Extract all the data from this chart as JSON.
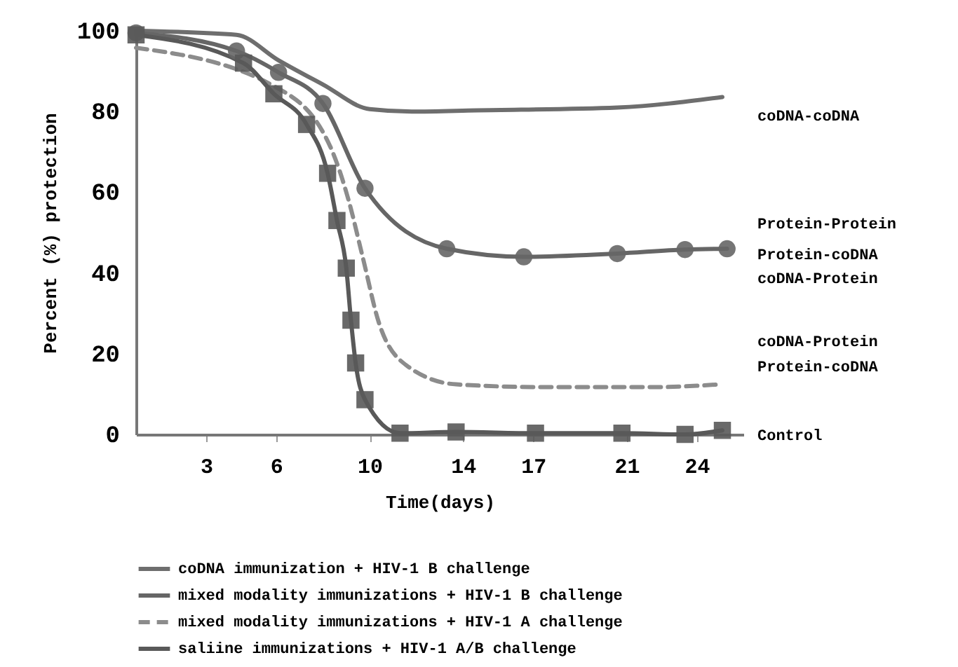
{
  "chart_data": {
    "type": "line",
    "xlabel": "Time(days)",
    "ylabel": "Percent (%) protection",
    "xlim": [
      0,
      26
    ],
    "xticks": [
      3,
      6,
      10,
      14,
      17,
      21,
      24
    ],
    "ylim": [
      0,
      100
    ],
    "yticks": [
      0,
      20,
      40,
      60,
      80,
      100
    ],
    "grid": false,
    "legend": "bottom",
    "series": [
      {
        "name": "coDNA immunization + HIV-1 B challenge",
        "color": "#6e6e6e",
        "marker": "none",
        "line_style": "solid",
        "x": [
          0,
          4.3,
          6.1,
          8,
          10,
          11.8,
          14.6,
          20.6,
          25.1
        ],
        "values": [
          100,
          99,
          92.7,
          86.7,
          80.6,
          80,
          80.3,
          81,
          83.6
        ]
      },
      {
        "name": "mixed modality immunizations + HIV-1 B challenge",
        "color": "#666666",
        "marker": "circle",
        "line_style": "solid",
        "x": [
          0,
          4.3,
          6.1,
          8,
          9.8,
          13.3,
          16.6,
          20.6,
          23.5,
          25.3
        ],
        "values": [
          99.5,
          95,
          89.7,
          82,
          61,
          46,
          44,
          44.8,
          45.8,
          46
        ]
      },
      {
        "name": "mixed modality immunizations + HIV-1 A challenge",
        "color": "#8c8c8c",
        "marker": "none",
        "line_style": "dashed",
        "x": [
          0,
          6,
          8.3,
          9.1,
          9.7,
          10.4,
          11.6,
          13.7,
          17.6,
          22.1,
          25
        ],
        "values": [
          95.8,
          86,
          71.5,
          58,
          44,
          27.6,
          17,
          12.4,
          11.7,
          11.7,
          12.4
        ]
      },
      {
        "name": "saliine immunizations + HIV-1 A/B challenge",
        "color": "#595959",
        "marker": "square",
        "line_style": "solid",
        "x": [
          0,
          4.6,
          5.9,
          7.3,
          8.2,
          8.6,
          9,
          9.2,
          9.4,
          9.8,
          11.3,
          13.7,
          17.1,
          20.8,
          23.5,
          25.1
        ],
        "values": [
          99,
          92,
          84.4,
          76.8,
          64.7,
          53,
          41.2,
          28.3,
          17.7,
          8.6,
          0.3,
          0.6,
          0.3,
          0.3,
          0,
          1
        ]
      }
    ],
    "annotations": [
      "coDNA-coDNA",
      "Protein-Protein",
      "Protein-coDNA",
      "coDNA-Protein",
      "coDNA-Protein",
      "Protein-coDNA",
      "Control"
    ]
  }
}
